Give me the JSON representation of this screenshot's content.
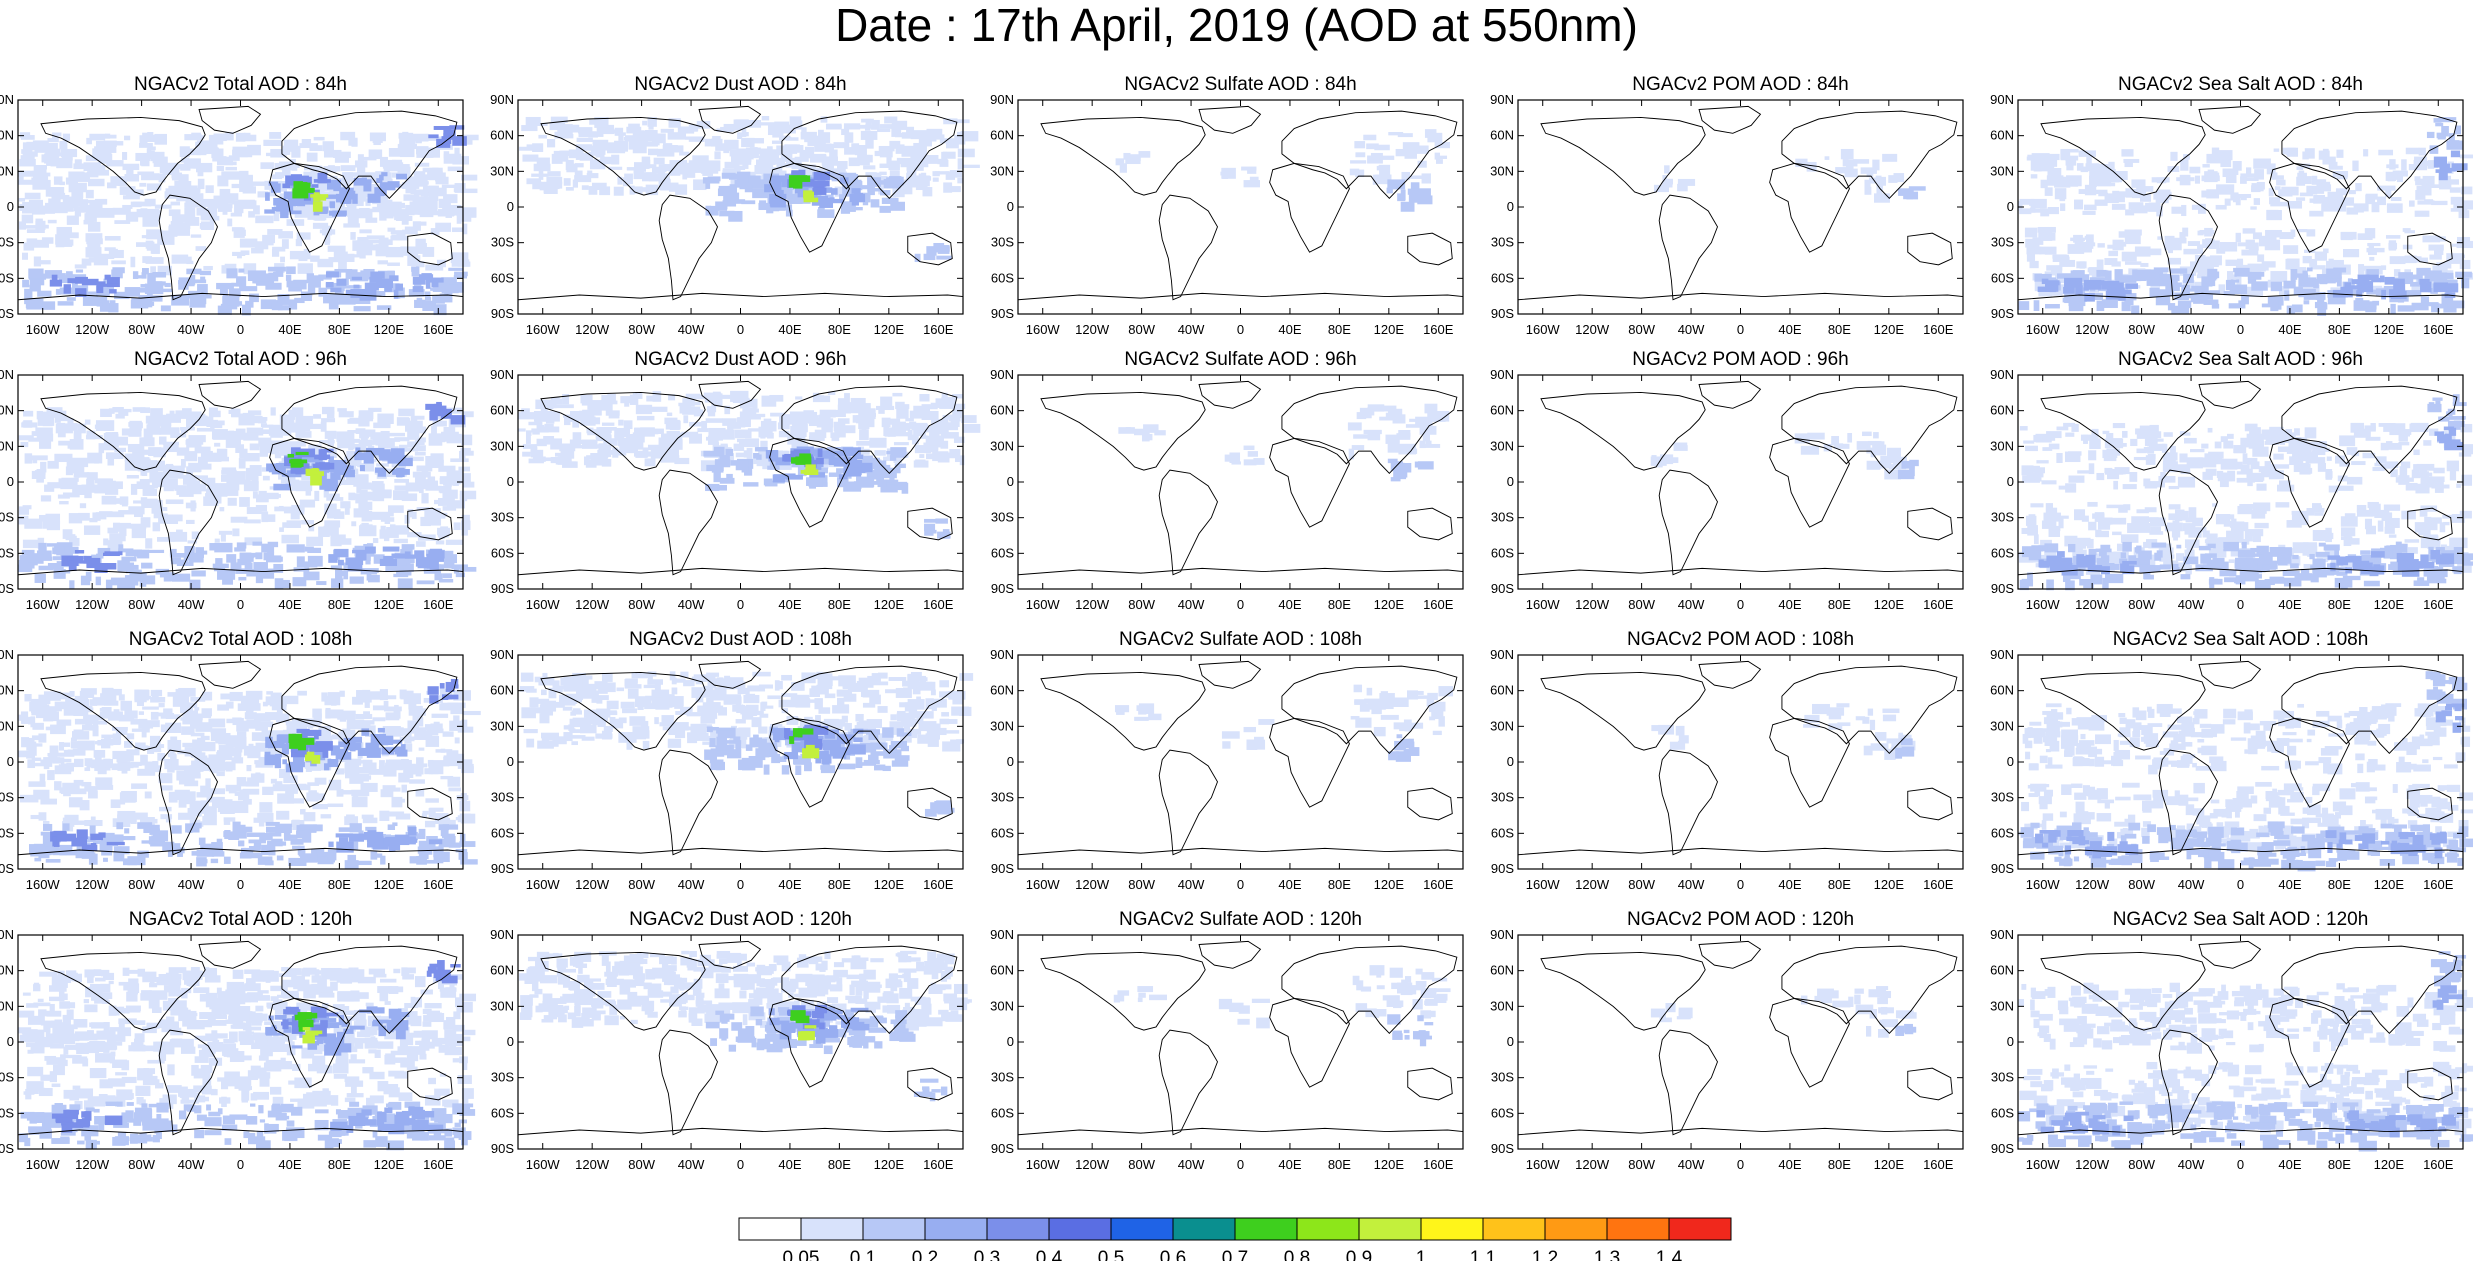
{
  "title": "Date : 17th April, 2019 (AOD at 550nm)",
  "species": [
    "Total",
    "Dust",
    "Sulfate",
    "POM",
    "Sea Salt"
  ],
  "panel_titles": [
    [
      "NGACv2 Total AOD : 84h",
      "NGACv2 Dust AOD : 84h",
      "NGACv2 Sulfate AOD : 84h",
      "NGACv2 POM AOD : 84h",
      "NGACv2 Sea Salt AOD : 84h"
    ],
    [
      "NGACv2 Total AOD : 96h",
      "NGACv2 Dust AOD : 96h",
      "NGACv2 Sulfate AOD : 96h",
      "NGACv2 POM AOD : 96h",
      "NGACv2 Sea Salt AOD : 96h"
    ],
    [
      "NGACv2 Total AOD : 108h",
      "NGACv2 Dust AOD : 108h",
      "NGACv2 Sulfate AOD : 108h",
      "NGACv2 POM AOD : 108h",
      "NGACv2 Sea Salt AOD : 108h"
    ],
    [
      "NGACv2 Total AOD : 120h",
      "NGACv2 Dust AOD : 120h",
      "NGACv2 Sulfate AOD : 120h",
      "NGACv2 POM AOD : 120h",
      "NGACv2 Sea Salt  AOD : 120h"
    ]
  ],
  "lat_labels": [
    "90N",
    "60N",
    "30N",
    "0",
    "30S",
    "60S",
    "90S"
  ],
  "lon_labels": [
    "160W",
    "120W",
    "80W",
    "40W",
    "0",
    "40E",
    "80E",
    "120E",
    "160E"
  ],
  "colorbar": {
    "labels": [
      "0.05",
      "0.1",
      "0.2",
      "0.3",
      "0.4",
      "0.5",
      "0.6",
      "0.7",
      "0.8",
      "0.9",
      "1",
      "1.1",
      "1.2",
      "1.3",
      "1.4"
    ],
    "colors": [
      "#ffffff",
      "#d8e2fb",
      "#b7c8f6",
      "#98aef1",
      "#7b8fea",
      "#5a6ee3",
      "#1f63e6",
      "#0a8f8f",
      "#3ecf1e",
      "#8de61a",
      "#c3f03c",
      "#fff51a",
      "#ffc21a",
      "#ff9a14",
      "#ff7410",
      "#f0281c"
    ]
  }
}
